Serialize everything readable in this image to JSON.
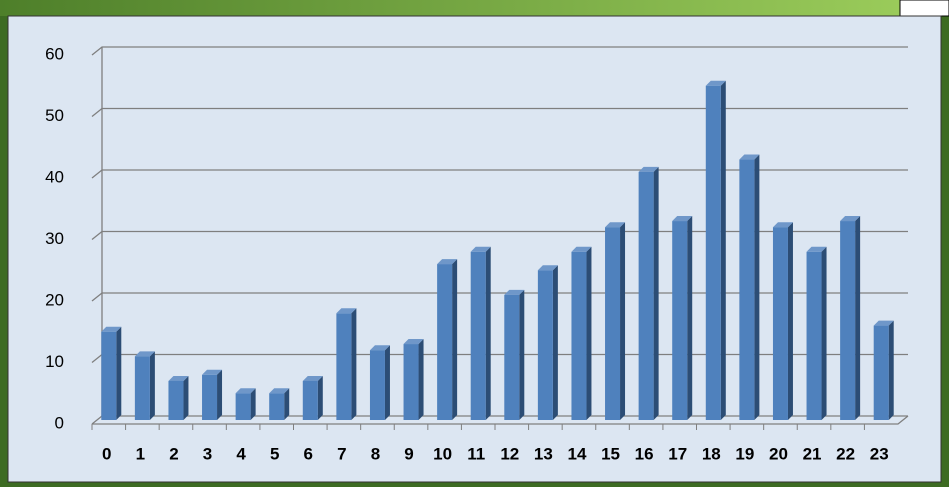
{
  "chart_data": {
    "type": "bar",
    "categories": [
      "0",
      "1",
      "2",
      "3",
      "4",
      "5",
      "6",
      "7",
      "8",
      "9",
      "10",
      "11",
      "12",
      "13",
      "14",
      "15",
      "16",
      "17",
      "18",
      "19",
      "20",
      "21",
      "22",
      "23"
    ],
    "values": [
      15,
      11,
      7,
      8,
      5,
      5,
      7,
      18,
      12,
      13,
      26,
      28,
      21,
      25,
      28,
      32,
      41,
      33,
      55,
      43,
      32,
      28,
      33,
      16
    ],
    "color": "#4f81bd",
    "ylim": [
      0,
      60
    ],
    "yticks": [
      0,
      10,
      20,
      30,
      40,
      50,
      60
    ],
    "grid": true
  }
}
